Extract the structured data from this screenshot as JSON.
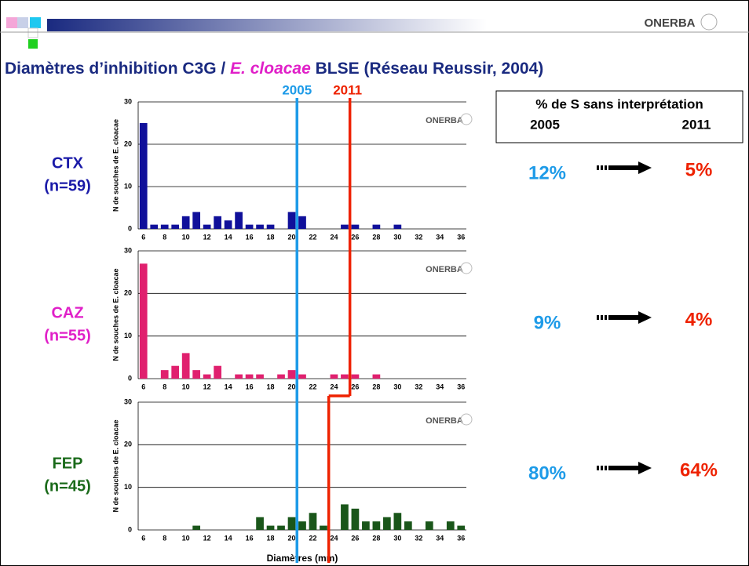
{
  "header": {
    "logo": "ONERBA",
    "title": {
      "part1": "Diamètres d’inhibition C3G / ",
      "italic": "E. cloacae",
      "part2": " BLSE (Réseau Reussir, 2004)"
    }
  },
  "breakpoints": [
    {
      "name": "2005",
      "color": "#1e9be8",
      "x": [
        20.5,
        20.5,
        20.5
      ]
    },
    {
      "name": "2011",
      "color": "#ee2200",
      "x": [
        25.5,
        25.5,
        23.5
      ]
    }
  ],
  "chart_data": [
    {
      "type": "bar",
      "label": "CTX",
      "sublabel": "(n=59)",
      "label_color": "#1a1aa8",
      "color": "#10109a",
      "ylabel": "N de souches de E. cloacae",
      "categories": [
        "6",
        null,
        "8",
        null,
        "10",
        null,
        "12",
        null,
        "14",
        null,
        "16",
        null,
        "18",
        null,
        "20",
        null,
        "22",
        null,
        "24",
        null,
        "26",
        null,
        "28",
        null,
        "30",
        null,
        "32",
        null,
        "34",
        null,
        "36"
      ],
      "values": [
        25,
        1,
        1,
        1,
        3,
        4,
        1,
        3,
        2,
        4,
        1,
        1,
        1,
        0,
        4,
        3,
        0,
        0,
        0,
        1,
        1,
        0,
        1,
        0,
        1,
        0,
        0,
        0,
        0,
        0,
        0
      ],
      "ylim": [
        0,
        30
      ],
      "yticks": [
        0,
        10,
        20,
        30
      ],
      "grid": true
    },
    {
      "type": "bar",
      "label": "CAZ",
      "sublabel": "(n=55)",
      "label_color": "#e020c8",
      "color": "#e0206e",
      "ylabel": "N de souches de E. cloacae",
      "categories": [
        "6",
        null,
        "8",
        null,
        "10",
        null,
        "12",
        null,
        "14",
        null,
        "16",
        null,
        "18",
        null,
        "20",
        null,
        "22",
        null,
        "24",
        null,
        "26",
        null,
        "28",
        null,
        "30",
        null,
        "32",
        null,
        "34",
        null,
        "36"
      ],
      "values": [
        27,
        0,
        2,
        3,
        6,
        2,
        1,
        3,
        0,
        1,
        1,
        1,
        0,
        1,
        2,
        1,
        0,
        0,
        1,
        1,
        1,
        0,
        1,
        0,
        0,
        0,
        0,
        0,
        0,
        0,
        0
      ],
      "ylim": [
        0,
        30
      ],
      "yticks": [
        0,
        10,
        20,
        30
      ],
      "grid": true
    },
    {
      "type": "bar",
      "label": "FEP",
      "sublabel": "(n=45)",
      "label_color": "#1a6a1a",
      "color": "#1a561a",
      "ylabel": "N de souches de E. cloacae",
      "xlabel": "Diamètres (mm)",
      "categories": [
        "6",
        null,
        "8",
        null,
        "10",
        null,
        "12",
        null,
        "14",
        null,
        "16",
        null,
        "18",
        null,
        "20",
        null,
        "22",
        null,
        "24",
        null,
        "26",
        null,
        "28",
        null,
        "30",
        null,
        "32",
        null,
        "34",
        null,
        "36"
      ],
      "values": [
        0,
        0,
        0,
        0,
        0,
        1,
        0,
        0,
        0,
        0,
        0,
        3,
        1,
        1,
        3,
        2,
        4,
        1,
        0,
        6,
        5,
        2,
        2,
        3,
        4,
        2,
        0,
        2,
        0,
        2,
        1
      ],
      "ylim": [
        0,
        30
      ],
      "yticks": [
        0,
        10,
        20,
        30
      ],
      "grid": true
    }
  ],
  "summary": {
    "heading": "% de S sans interprétation",
    "years": [
      "2005",
      "2011"
    ],
    "rows": [
      [
        "12%",
        "5%"
      ],
      [
        "9%",
        "4%"
      ],
      [
        "80%",
        "64%"
      ]
    ]
  }
}
